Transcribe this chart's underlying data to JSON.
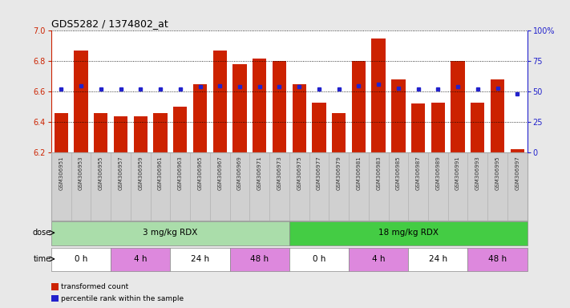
{
  "title": "GDS5282 / 1374802_at",
  "samples": [
    "GSM306951",
    "GSM306953",
    "GSM306955",
    "GSM306957",
    "GSM306959",
    "GSM306961",
    "GSM306963",
    "GSM306965",
    "GSM306967",
    "GSM306969",
    "GSM306971",
    "GSM306973",
    "GSM306975",
    "GSM306977",
    "GSM306979",
    "GSM306981",
    "GSM306983",
    "GSM306985",
    "GSM306987",
    "GSM306989",
    "GSM306991",
    "GSM306993",
    "GSM306995",
    "GSM306997"
  ],
  "bar_values": [
    6.46,
    6.87,
    6.46,
    6.44,
    6.44,
    6.46,
    6.5,
    6.65,
    6.87,
    6.78,
    6.82,
    6.8,
    6.65,
    6.53,
    6.46,
    6.8,
    6.95,
    6.68,
    6.52,
    6.53,
    6.8,
    6.53,
    6.68,
    6.22
  ],
  "percentile_values": [
    52,
    55,
    52,
    52,
    52,
    52,
    52,
    54,
    55,
    54,
    54,
    54,
    54,
    52,
    52,
    55,
    56,
    53,
    52,
    52,
    54,
    52,
    53,
    48
  ],
  "ymin": 6.2,
  "ymax": 7.0,
  "yticks_left": [
    6.2,
    6.4,
    6.6,
    6.8,
    7.0
  ],
  "yticks_right": [
    0,
    25,
    50,
    75,
    100
  ],
  "bar_color": "#cc2200",
  "percentile_color": "#2222cc",
  "bg_color": "#e8e8e8",
  "plot_bg": "#ffffff",
  "tick_label_bg": "#d0d0d0",
  "dose_groups": [
    {
      "text": "3 mg/kg RDX",
      "start": 0,
      "end": 11,
      "color": "#aaddaa"
    },
    {
      "text": "18 mg/kg RDX",
      "start": 12,
      "end": 23,
      "color": "#44cc44"
    }
  ],
  "time_groups": [
    {
      "text": "0 h",
      "start": 0,
      "end": 2,
      "color": "#ffffff"
    },
    {
      "text": "4 h",
      "start": 3,
      "end": 5,
      "color": "#dd88dd"
    },
    {
      "text": "24 h",
      "start": 6,
      "end": 8,
      "color": "#ffffff"
    },
    {
      "text": "48 h",
      "start": 9,
      "end": 11,
      "color": "#dd88dd"
    },
    {
      "text": "0 h",
      "start": 12,
      "end": 14,
      "color": "#ffffff"
    },
    {
      "text": "4 h",
      "start": 15,
      "end": 17,
      "color": "#dd88dd"
    },
    {
      "text": "24 h",
      "start": 18,
      "end": 20,
      "color": "#ffffff"
    },
    {
      "text": "48 h",
      "start": 21,
      "end": 23,
      "color": "#dd88dd"
    }
  ],
  "legend_items": [
    {
      "label": "transformed count",
      "color": "#cc2200"
    },
    {
      "label": "percentile rank within the sample",
      "color": "#2222cc"
    }
  ]
}
